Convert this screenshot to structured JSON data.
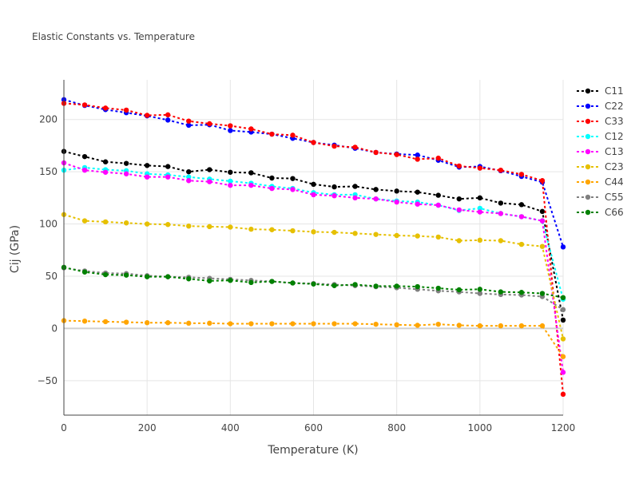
{
  "chart_data": {
    "type": "line",
    "title": "Elastic Constants vs. Temperature",
    "xlabel": "Temperature (K)",
    "ylabel": "Cij (GPa)",
    "xlim": [
      0,
      1200
    ],
    "ylim": [
      -83,
      238
    ],
    "xticks": [
      0,
      200,
      400,
      600,
      800,
      1000,
      1200
    ],
    "yticks": [
      -50,
      0,
      50,
      100,
      150,
      200
    ],
    "ytick_labels": [
      "−50",
      "0",
      "50",
      "100",
      "150",
      "200"
    ],
    "grid": true,
    "legend_position": "right",
    "x": [
      0,
      50,
      100,
      150,
      200,
      250,
      300,
      350,
      400,
      450,
      500,
      550,
      600,
      650,
      700,
      750,
      800,
      850,
      900,
      950,
      1000,
      1050,
      1100,
      1150,
      1200
    ],
    "series": [
      {
        "name": "C11",
        "color": "#000000",
        "values": [
          169.5,
          164.5,
          159.5,
          158,
          156,
          155,
          150,
          152,
          149.5,
          149,
          144,
          143.5,
          138,
          135.5,
          136,
          133,
          131.5,
          130.5,
          127.5,
          124,
          125,
          120,
          118.5,
          112,
          8
        ]
      },
      {
        "name": "C22",
        "color": "#0000ff",
        "values": [
          219,
          213.5,
          209.5,
          206.5,
          203.5,
          199.5,
          194.5,
          195,
          189.5,
          188,
          186,
          182,
          178,
          175.5,
          172.5,
          168.5,
          167,
          166,
          161,
          154.5,
          155,
          151,
          145.5,
          140,
          78
        ]
      },
      {
        "name": "C33",
        "color": "#ff0000",
        "values": [
          215.5,
          214,
          211,
          209,
          204,
          204.5,
          198.5,
          196,
          194,
          191,
          186,
          185,
          178,
          174.5,
          173.5,
          168.5,
          166.5,
          162,
          163,
          155.5,
          153.5,
          151.5,
          147.5,
          141.5,
          -63
        ]
      },
      {
        "name": "C12",
        "color": "#00ffff",
        "values": [
          151.5,
          154,
          152,
          151,
          148,
          147,
          145,
          143,
          141,
          139,
          136,
          134,
          130,
          128,
          128,
          124,
          122,
          121,
          118,
          113,
          115,
          110,
          107,
          103,
          28
        ]
      },
      {
        "name": "C13",
        "color": "#ff00ff",
        "values": [
          158.5,
          151.5,
          149.5,
          148,
          145,
          145,
          141.5,
          140.5,
          137,
          137,
          134,
          133,
          128,
          127,
          125,
          124,
          121,
          119,
          118,
          113.5,
          111.5,
          110,
          107,
          103,
          -42
        ]
      },
      {
        "name": "C23",
        "color": "#e6c000",
        "values": [
          109,
          103,
          102,
          101,
          100,
          99.5,
          98,
          97.5,
          97,
          95,
          94.5,
          93.5,
          92.5,
          92,
          91,
          90,
          89,
          88.5,
          87.5,
          84,
          84.5,
          84,
          80.5,
          78.5,
          -10
        ]
      },
      {
        "name": "C44",
        "color": "#ffa500",
        "values": [
          7.5,
          7,
          6.5,
          6,
          5.5,
          5.5,
          5,
          5,
          4.5,
          4.5,
          4.5,
          4.5,
          4.5,
          4.5,
          4.5,
          4,
          3.5,
          3,
          4,
          3,
          2.5,
          2.5,
          2.5,
          2.5,
          -27
        ]
      },
      {
        "name": "C55",
        "color": "#808080",
        "values": [
          58,
          55,
          53,
          52.5,
          50.5,
          49.5,
          49,
          48,
          47,
          46,
          45,
          43.5,
          43,
          42,
          41,
          40,
          39,
          37.5,
          36,
          35,
          33.5,
          32.5,
          32,
          30.5,
          18
        ]
      },
      {
        "name": "C66",
        "color": "#008000",
        "values": [
          58.5,
          54,
          51.5,
          51,
          49.5,
          49.5,
          47.5,
          45.5,
          46,
          44,
          45,
          43.5,
          42.5,
          41,
          42,
          40.5,
          40.5,
          40,
          38.5,
          37,
          37.5,
          35,
          34.5,
          33.5,
          29.5
        ]
      }
    ]
  }
}
